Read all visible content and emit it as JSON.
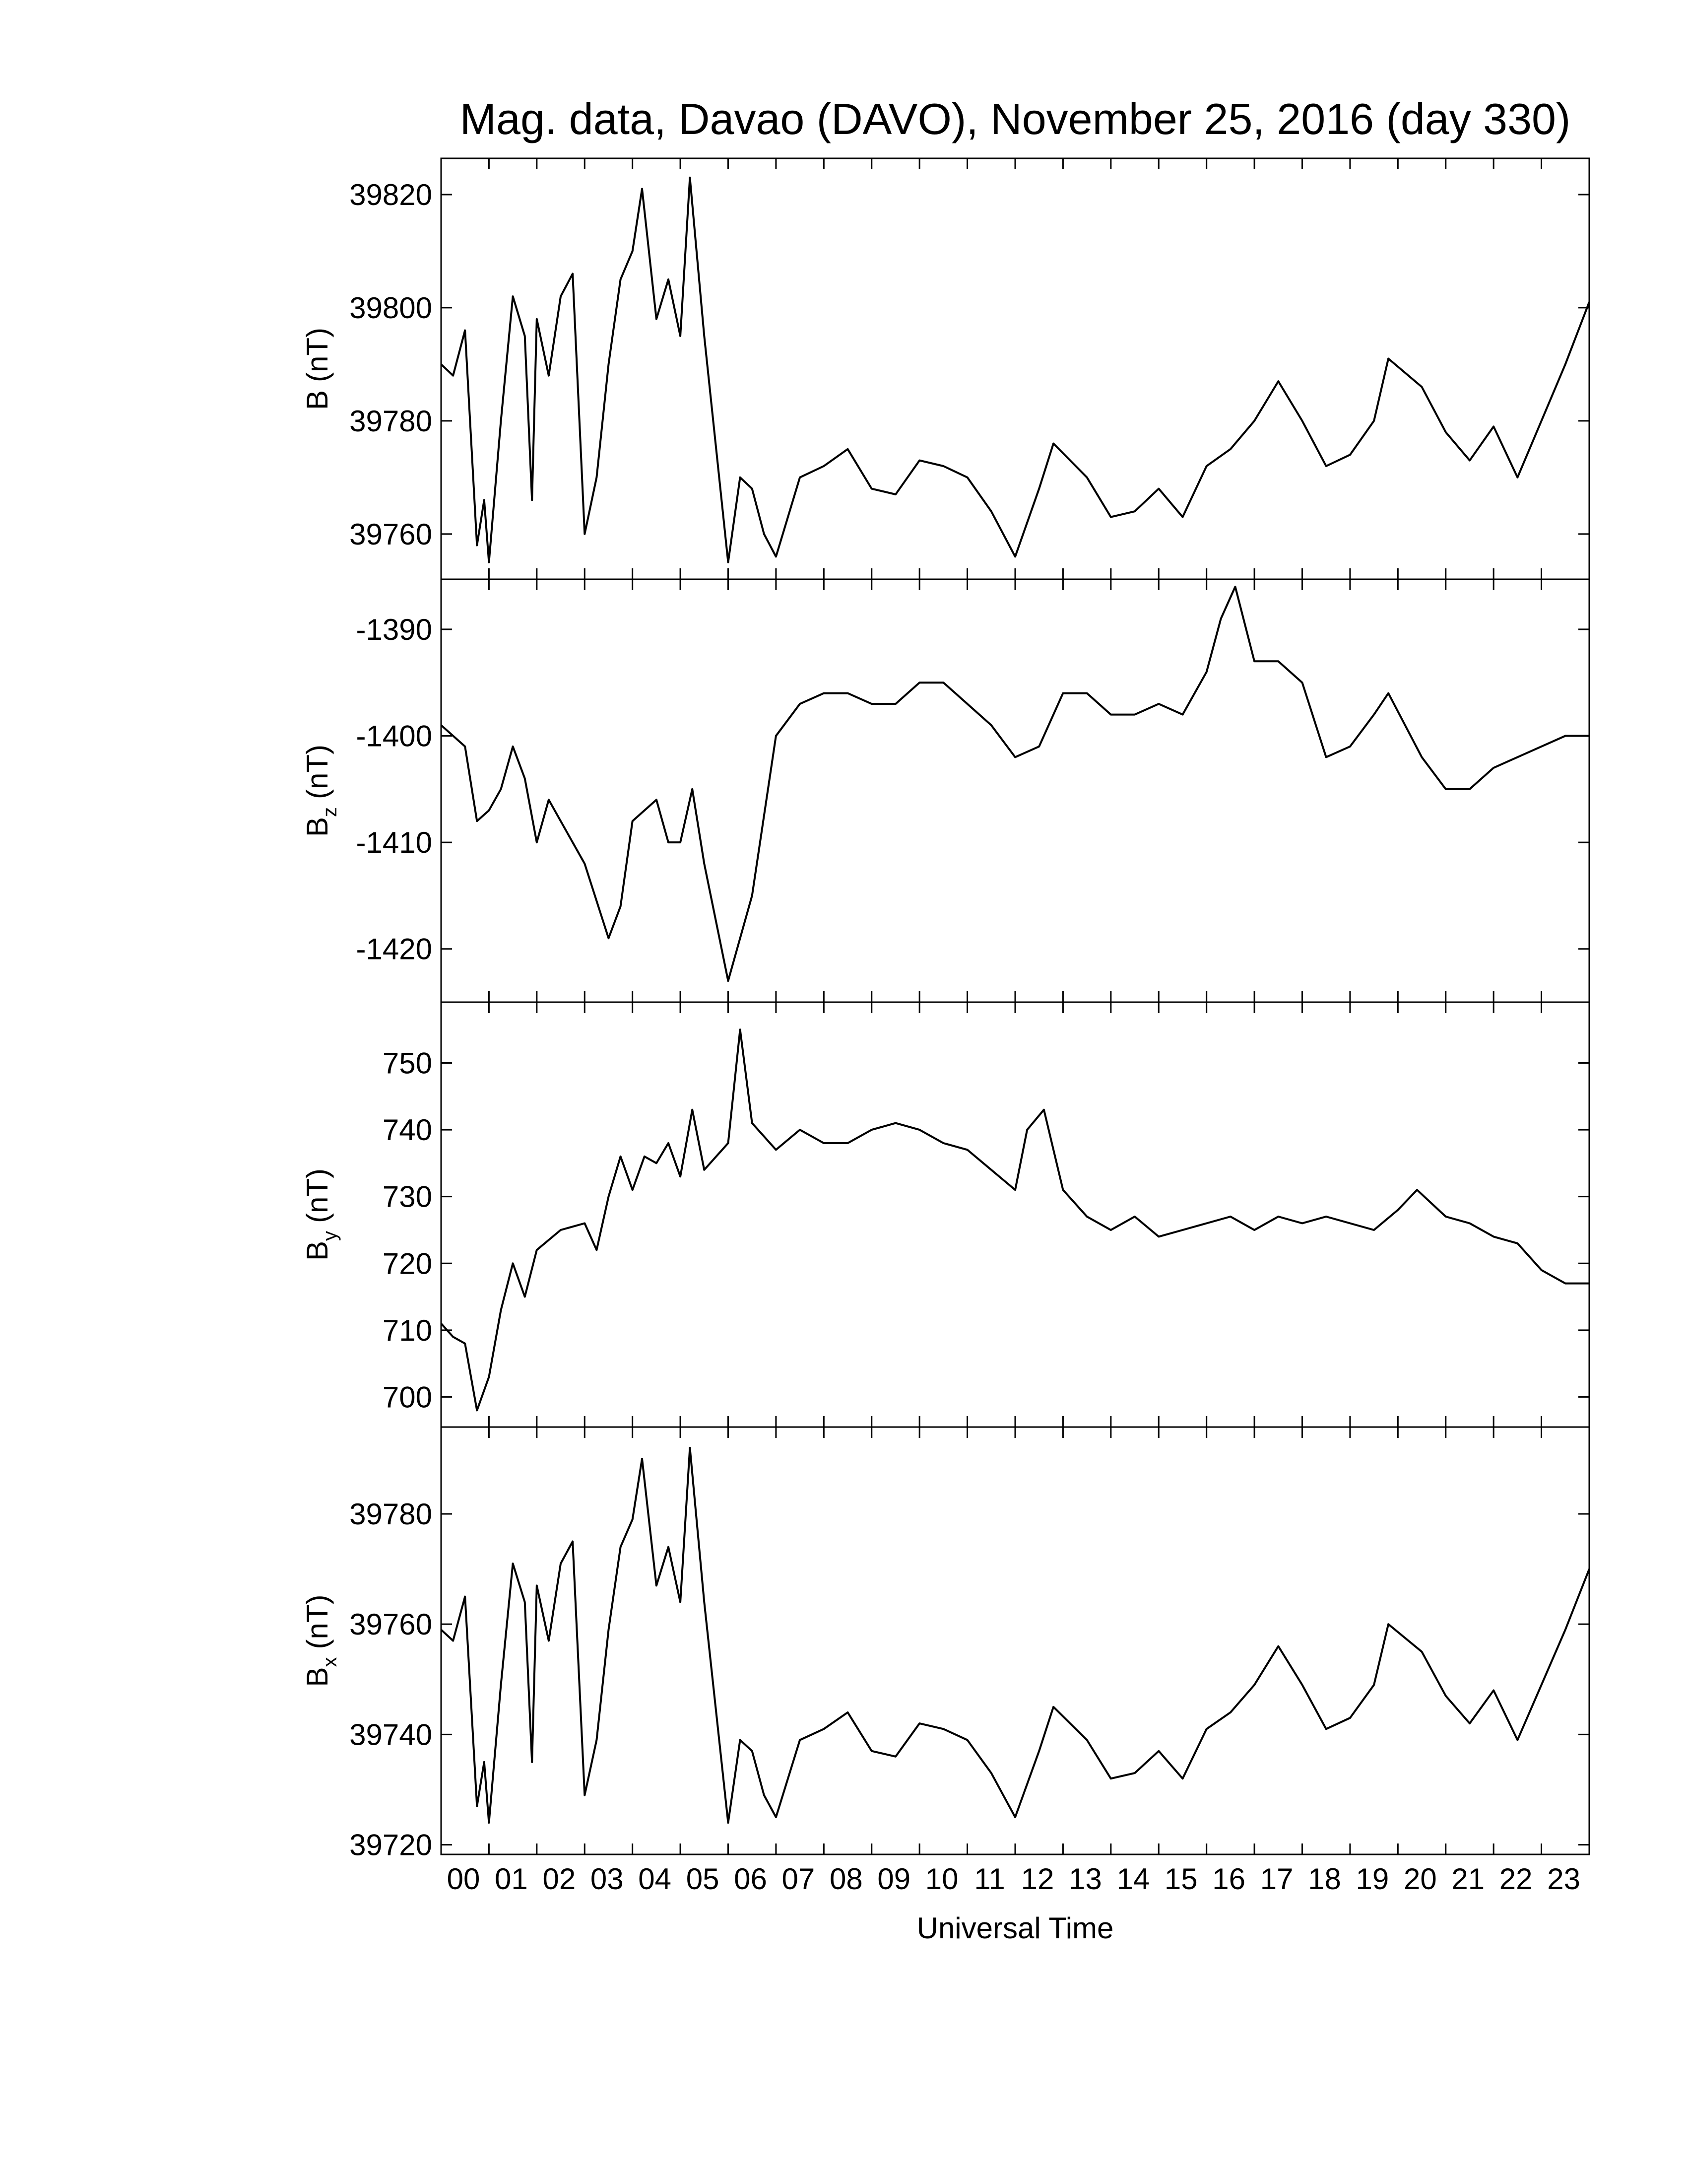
{
  "chart_data": [
    {
      "type": "line",
      "title": "Mag. data, Davao (DAVO), November 25, 2016 (day 330)",
      "ylabel": "B",
      "ylabel_unit": "(nT)",
      "color": "#000000",
      "x": [
        0,
        0.25,
        0.5,
        0.75,
        0.9,
        1.0,
        1.25,
        1.5,
        1.75,
        1.9,
        2.0,
        2.25,
        2.5,
        2.75,
        3.0,
        3.25,
        3.5,
        3.75,
        4.0,
        4.2,
        4.5,
        4.75,
        5.0,
        5.2,
        5.5,
        5.75,
        6.0,
        6.25,
        6.5,
        6.75,
        7.0,
        7.5,
        8,
        8.5,
        9,
        9.5,
        10,
        10.5,
        11,
        11.5,
        12,
        12.5,
        12.8,
        13.5,
        14,
        14.5,
        15,
        15.5,
        16,
        16.5,
        17,
        17.5,
        18,
        18.5,
        19,
        19.5,
        19.8,
        20.5,
        21,
        21.5,
        22,
        22.5,
        23,
        23.5,
        24
      ],
      "values": [
        39790,
        39788,
        39796,
        39758,
        39766,
        39755,
        39780,
        39802,
        39795,
        39766,
        39798,
        39788,
        39802,
        39806,
        39760,
        39770,
        39790,
        39805,
        39810,
        39821,
        39798,
        39805,
        39795,
        39823,
        39795,
        39775,
        39755,
        39770,
        39768,
        39760,
        39756,
        39770,
        39772,
        39775,
        39768,
        39767,
        39773,
        39772,
        39770,
        39764,
        39756,
        39768,
        39776,
        39770,
        39763,
        39764,
        39768,
        39763,
        39772,
        39775,
        39780,
        39787,
        39780,
        39772,
        39774,
        39780,
        39791,
        39786,
        39778,
        39773,
        39779,
        39770,
        39780,
        39790,
        39801
      ],
      "xlim": [
        0,
        24
      ],
      "ylim": [
        39752,
        39826.4
      ],
      "yticks": [
        39760,
        39780,
        39800,
        39820
      ]
    },
    {
      "type": "line",
      "ylabel": "B",
      "ylabel_sub": "z",
      "ylabel_unit": "(nT)",
      "color": "#000000",
      "x": [
        0,
        0.5,
        0.75,
        1.0,
        1.25,
        1.5,
        1.75,
        2.0,
        2.25,
        2.5,
        3.0,
        3.5,
        3.75,
        4.0,
        4.5,
        4.75,
        5.0,
        5.25,
        5.5,
        6.0,
        6.5,
        7.0,
        7.5,
        8.0,
        8.5,
        9.0,
        9.5,
        10.0,
        10.5,
        11.0,
        11.5,
        12.0,
        12.5,
        13.0,
        13.5,
        14.0,
        14.5,
        15.0,
        15.5,
        16.0,
        16.3,
        16.6,
        17.0,
        17.5,
        18.0,
        18.5,
        19.0,
        19.5,
        19.8,
        20.5,
        21.0,
        21.5,
        22.0,
        22.5,
        23.0,
        23.5,
        24
      ],
      "values": [
        -1399,
        -1401,
        -1408,
        -1407,
        -1405,
        -1401,
        -1404,
        -1410,
        -1406,
        -1408,
        -1412,
        -1419,
        -1416,
        -1408,
        -1406,
        -1410,
        -1410,
        -1405,
        -1412,
        -1423,
        -1415,
        -1400,
        -1397,
        -1396,
        -1396,
        -1397,
        -1397,
        -1395,
        -1395,
        -1397,
        -1399,
        -1402,
        -1401,
        -1396,
        -1396,
        -1398,
        -1398,
        -1397,
        -1398,
        -1394,
        -1389,
        -1386,
        -1393,
        -1393,
        -1395,
        -1402,
        -1401,
        -1398,
        -1396,
        -1402,
        -1405,
        -1405,
        -1403,
        -1402,
        -1401,
        -1400,
        -1400
      ],
      "xlim": [
        0,
        24
      ],
      "ylim": [
        -1425,
        -1385.3
      ],
      "yticks": [
        -1420,
        -1410,
        -1400,
        -1390
      ]
    },
    {
      "type": "line",
      "ylabel": "B",
      "ylabel_sub": "y",
      "ylabel_unit": "(nT)",
      "color": "#000000",
      "x": [
        0,
        0.25,
        0.5,
        0.75,
        1.0,
        1.25,
        1.5,
        1.75,
        2.0,
        2.5,
        3.0,
        3.25,
        3.5,
        3.75,
        4.0,
        4.25,
        4.5,
        4.75,
        5.0,
        5.25,
        5.5,
        6.0,
        6.25,
        6.5,
        7.0,
        7.5,
        8.0,
        8.5,
        9.0,
        9.5,
        10.0,
        10.5,
        11.0,
        11.5,
        12.0,
        12.25,
        12.6,
        13.0,
        13.5,
        14.0,
        14.5,
        15.0,
        15.5,
        16.0,
        16.5,
        17.0,
        17.5,
        18.0,
        18.5,
        19.0,
        19.5,
        20.0,
        20.4,
        21.0,
        21.5,
        22.0,
        22.5,
        23.0,
        23.5,
        24
      ],
      "values": [
        711,
        709,
        708,
        698,
        703,
        713,
        720,
        715,
        722,
        725,
        726,
        722,
        730,
        736,
        731,
        736,
        735,
        738,
        733,
        743,
        734,
        738,
        755,
        741,
        737,
        740,
        738,
        738,
        740,
        741,
        740,
        738,
        737,
        734,
        731,
        740,
        743,
        731,
        727,
        725,
        727,
        724,
        725,
        726,
        727,
        725,
        727,
        726,
        727,
        726,
        725,
        728,
        731,
        727,
        726,
        724,
        723,
        719,
        717,
        717
      ],
      "xlim": [
        0,
        24
      ],
      "ylim": [
        695.5,
        759.1
      ],
      "yticks": [
        700,
        710,
        720,
        730,
        740,
        750
      ]
    },
    {
      "type": "line",
      "ylabel": "B",
      "ylabel_sub": "x",
      "ylabel_unit": "(nT)",
      "xlabel": "Universal Time",
      "color": "#000000",
      "x": [
        0,
        0.25,
        0.5,
        0.75,
        0.9,
        1.0,
        1.25,
        1.5,
        1.75,
        1.9,
        2.0,
        2.25,
        2.5,
        2.75,
        3.0,
        3.25,
        3.5,
        3.75,
        4.0,
        4.2,
        4.5,
        4.75,
        5.0,
        5.2,
        5.5,
        5.75,
        6.0,
        6.25,
        6.5,
        6.75,
        7.0,
        7.5,
        8,
        8.5,
        9,
        9.5,
        10,
        10.5,
        11,
        11.5,
        12,
        12.5,
        12.8,
        13.5,
        14,
        14.5,
        15,
        15.5,
        16,
        16.5,
        17,
        17.5,
        18,
        18.5,
        19,
        19.5,
        19.8,
        20.5,
        21,
        21.5,
        22,
        22.5,
        23,
        23.5,
        24
      ],
      "values": [
        39759,
        39757,
        39765,
        39727,
        39735,
        39724,
        39749,
        39771,
        39764,
        39735,
        39767,
        39757,
        39771,
        39775,
        39729,
        39739,
        39759,
        39774,
        39779,
        39790,
        39767,
        39774,
        39764,
        39792,
        39764,
        39744,
        39724,
        39739,
        39737,
        39729,
        39725,
        39739,
        39741,
        39744,
        39737,
        39736,
        39742,
        39741,
        39739,
        39733,
        39725,
        39737,
        39745,
        39739,
        39732,
        39733,
        39737,
        39732,
        39741,
        39744,
        39749,
        39756,
        39749,
        39741,
        39743,
        39749,
        39760,
        39755,
        39747,
        39742,
        39748,
        39739,
        39749,
        39759,
        39770
      ],
      "xlim": [
        0,
        24
      ],
      "ylim": [
        39718.25,
        39795.75
      ],
      "yticks": [
        39720,
        39740,
        39760,
        39780
      ],
      "xticks": [
        {
          "value": 0,
          "label": "00"
        },
        {
          "value": 1,
          "label": "01"
        },
        {
          "value": 2,
          "label": "02"
        },
        {
          "value": 3,
          "label": "03"
        },
        {
          "value": 4,
          "label": "04"
        },
        {
          "value": 5,
          "label": "05"
        },
        {
          "value": 6,
          "label": "06"
        },
        {
          "value": 7,
          "label": "07"
        },
        {
          "value": 8,
          "label": "08"
        },
        {
          "value": 9,
          "label": "09"
        },
        10,
        11,
        12,
        13,
        14,
        15,
        16,
        17,
        18,
        19,
        20,
        21,
        22,
        23
      ]
    }
  ]
}
